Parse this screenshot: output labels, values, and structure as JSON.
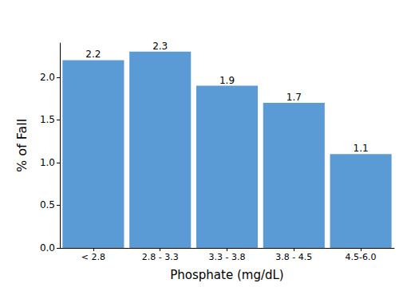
{
  "chart_data": {
    "type": "bar",
    "x_label": "Phosphate (mg/dL)",
    "y_label": "% of Fall",
    "categories": [
      "< 2.8",
      "2.8 - 3.3",
      "3.3 - 3.8",
      "3.8 - 4.5",
      "4.5-6.0"
    ],
    "values": [
      2.2,
      2.3,
      1.9,
      1.7,
      1.1
    ],
    "color": "#5b9bd5",
    "ylim": [
      0,
      2.4
    ],
    "yticks": [
      {
        "value": 0,
        "label": "0.0"
      },
      0.5,
      {
        "value": 1,
        "label": "1.0"
      },
      1.5,
      {
        "value": 2,
        "label": "2.0"
      }
    ],
    "grid": false,
    "data_labels": true
  }
}
